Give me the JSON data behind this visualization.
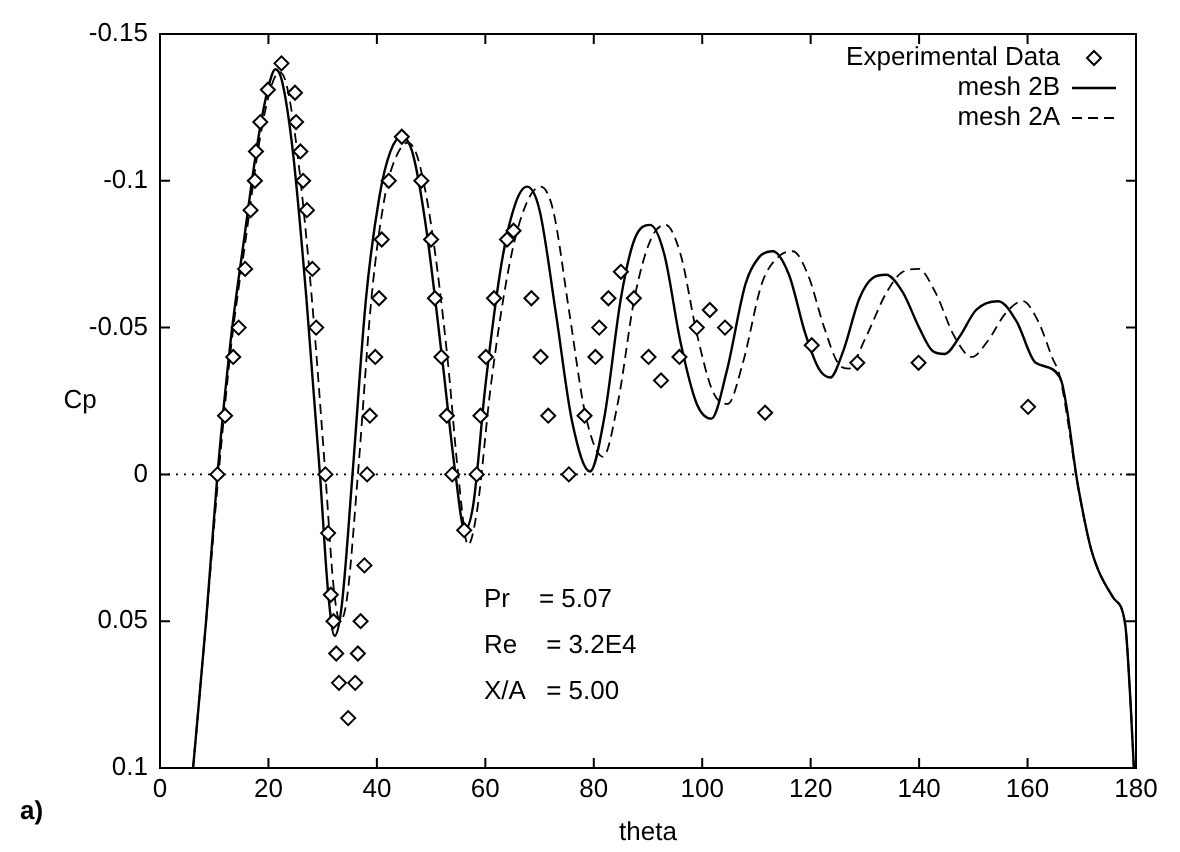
{
  "chart_data": {
    "type": "line",
    "xlabel": "theta",
    "ylabel": "Cp",
    "xlim": [
      0,
      180
    ],
    "xticks": [
      0,
      20,
      40,
      60,
      80,
      100,
      120,
      140,
      160,
      180
    ],
    "ylim": [
      0.1,
      -0.15
    ],
    "yticks": [
      -0.15,
      -0.1,
      -0.05,
      0,
      0.05,
      0.1
    ],
    "grid": false,
    "legend": "top right",
    "ref_lines": [
      {
        "axis": "y",
        "value": 0,
        "line_style": "dotted",
        "color": "#000000"
      }
    ],
    "annotations": [
      "Pr    = 5.07",
      "Re    = 3.2E4",
      "X/A   = 5.00",
      "a)"
    ],
    "series": [
      {
        "name": "Experimental Data",
        "type": "scatter",
        "marker": "diamond",
        "color": "#000000",
        "x": [
          10.6,
          12.0,
          13.5,
          14.5,
          15.7,
          16.7,
          17.5,
          17.7,
          18.5,
          19.9,
          22.4,
          24.9,
          25.1,
          25.9,
          26.4,
          27.1,
          28.1,
          28.8,
          30.5,
          31.0,
          31.5,
          32.0,
          32.5,
          33.0,
          34.7,
          36.0,
          36.5,
          37.0,
          37.7,
          38.2,
          38.7,
          39.7,
          40.4,
          40.9,
          42.2,
          44.6,
          48.2,
          50.0,
          50.7,
          51.9,
          52.9,
          53.9,
          56.1,
          58.4,
          59.1,
          60.1,
          61.6,
          64.0,
          65.2,
          68.5,
          70.2,
          71.6,
          75.4,
          78.3,
          80.3,
          81.0,
          82.7,
          85.0,
          87.4,
          90.1,
          92.4,
          95.8,
          99.0,
          101.4,
          104.2,
          111.6,
          120.2,
          128.6,
          139.9,
          160.1
        ],
        "values": [
          0,
          -0.02,
          -0.04,
          -0.05,
          -0.07,
          -0.09,
          -0.1,
          -0.11,
          -0.12,
          -0.131,
          -0.14,
          -0.13,
          -0.12,
          -0.11,
          -0.1,
          -0.09,
          -0.07,
          -0.05,
          0,
          0.02,
          0.041,
          0.05,
          0.061,
          0.071,
          0.083,
          0.071,
          0.061,
          0.05,
          0.031,
          0,
          -0.02,
          -0.04,
          -0.06,
          -0.08,
          -0.1,
          -0.115,
          -0.1,
          -0.08,
          -0.06,
          -0.04,
          -0.02,
          0,
          0.019,
          0,
          -0.02,
          -0.04,
          -0.06,
          -0.08,
          -0.083,
          -0.06,
          -0.04,
          -0.02,
          0,
          -0.02,
          -0.04,
          -0.05,
          -0.06,
          -0.069,
          -0.06,
          -0.04,
          -0.032,
          -0.04,
          -0.05,
          -0.056,
          -0.05,
          -0.021,
          -0.044,
          -0.038,
          -0.038,
          -0.023
        ]
      },
      {
        "name": "mesh 2B",
        "marker": "none",
        "line_style": "solid",
        "color": "#000000",
        "x": [
          6.1,
          8.5,
          10.6,
          13,
          15.5,
          18,
          20,
          21.3,
          22.5,
          24.5,
          27,
          29.5,
          31,
          32.2,
          33.5,
          35.5,
          38,
          40.5,
          42.5,
          44.5,
          46.5,
          49,
          52,
          54.5,
          56.2,
          57.8,
          60,
          63,
          65.5,
          67.7,
          70,
          73,
          76,
          79.3,
          82,
          85,
          87.5,
          90.4,
          93,
          96,
          99,
          101.7,
          104.5,
          108,
          110.5,
          113,
          116,
          119,
          121.5,
          123.6,
          126,
          129,
          131.5,
          133.9,
          137,
          140,
          142.5,
          144.7,
          147.5,
          150.5,
          154.6,
          158,
          161.5,
          166,
          169.4,
          171.8,
          175.8,
          178,
          179,
          179.6
        ],
        "values": [
          0.1,
          0.05,
          0,
          -0.045,
          -0.08,
          -0.113,
          -0.132,
          -0.138,
          -0.134,
          -0.11,
          -0.06,
          0,
          0.04,
          0.055,
          0.045,
          0,
          -0.06,
          -0.095,
          -0.11,
          -0.115,
          -0.11,
          -0.085,
          -0.04,
          0,
          0.019,
          0.01,
          -0.03,
          -0.072,
          -0.092,
          -0.098,
          -0.09,
          -0.055,
          -0.018,
          -0.001,
          -0.02,
          -0.06,
          -0.08,
          -0.085,
          -0.075,
          -0.045,
          -0.024,
          -0.019,
          -0.035,
          -0.065,
          -0.074,
          -0.076,
          -0.068,
          -0.048,
          -0.036,
          -0.033,
          -0.042,
          -0.06,
          -0.067,
          -0.068,
          -0.062,
          -0.05,
          -0.042,
          -0.041,
          -0.047,
          -0.056,
          -0.059,
          -0.052,
          -0.038,
          -0.033,
          0.005,
          0.026,
          0.042,
          0.051,
          0.078,
          0.1
        ]
      },
      {
        "name": "mesh 2A",
        "marker": "none",
        "line_style": "dashed",
        "color": "#000000",
        "x": [
          6.1,
          8.5,
          10.8,
          13.2,
          15.8,
          18.3,
          20.5,
          22,
          23.3,
          25.3,
          28,
          30.5,
          32,
          33.2,
          34.5,
          36.5,
          39,
          41.5,
          43.5,
          45.7,
          47.5,
          50,
          53,
          55,
          56.8,
          58.5,
          61,
          64.5,
          67.5,
          70.2,
          72.5,
          75.5,
          78.5,
          81.7,
          84.5,
          87.5,
          90.5,
          93.2,
          96,
          99,
          102,
          104.7,
          107.5,
          111,
          114,
          116.7,
          119.5,
          122.5,
          125,
          127,
          130,
          134,
          137,
          139.9,
          143,
          146.5,
          149.7,
          152.5,
          156,
          159.1,
          162,
          164.5,
          166,
          169.4,
          171.8,
          175.8,
          178,
          179,
          179.6
        ],
        "values": [
          0.1,
          0.05,
          0,
          -0.045,
          -0.08,
          -0.113,
          -0.132,
          -0.137,
          -0.133,
          -0.11,
          -0.06,
          0,
          0.038,
          0.05,
          0.042,
          0,
          -0.06,
          -0.095,
          -0.108,
          -0.113,
          -0.108,
          -0.085,
          -0.04,
          0,
          0.024,
          0.012,
          -0.03,
          -0.072,
          -0.092,
          -0.098,
          -0.09,
          -0.055,
          -0.02,
          -0.006,
          -0.025,
          -0.06,
          -0.08,
          -0.085,
          -0.075,
          -0.048,
          -0.028,
          -0.024,
          -0.038,
          -0.065,
          -0.074,
          -0.076,
          -0.068,
          -0.05,
          -0.038,
          -0.036,
          -0.046,
          -0.062,
          -0.069,
          -0.07,
          -0.062,
          -0.047,
          -0.04,
          -0.045,
          -0.055,
          -0.059,
          -0.052,
          -0.04,
          -0.033,
          0.005,
          0.026,
          0.042,
          0.051,
          0.078,
          0.1
        ]
      }
    ]
  }
}
